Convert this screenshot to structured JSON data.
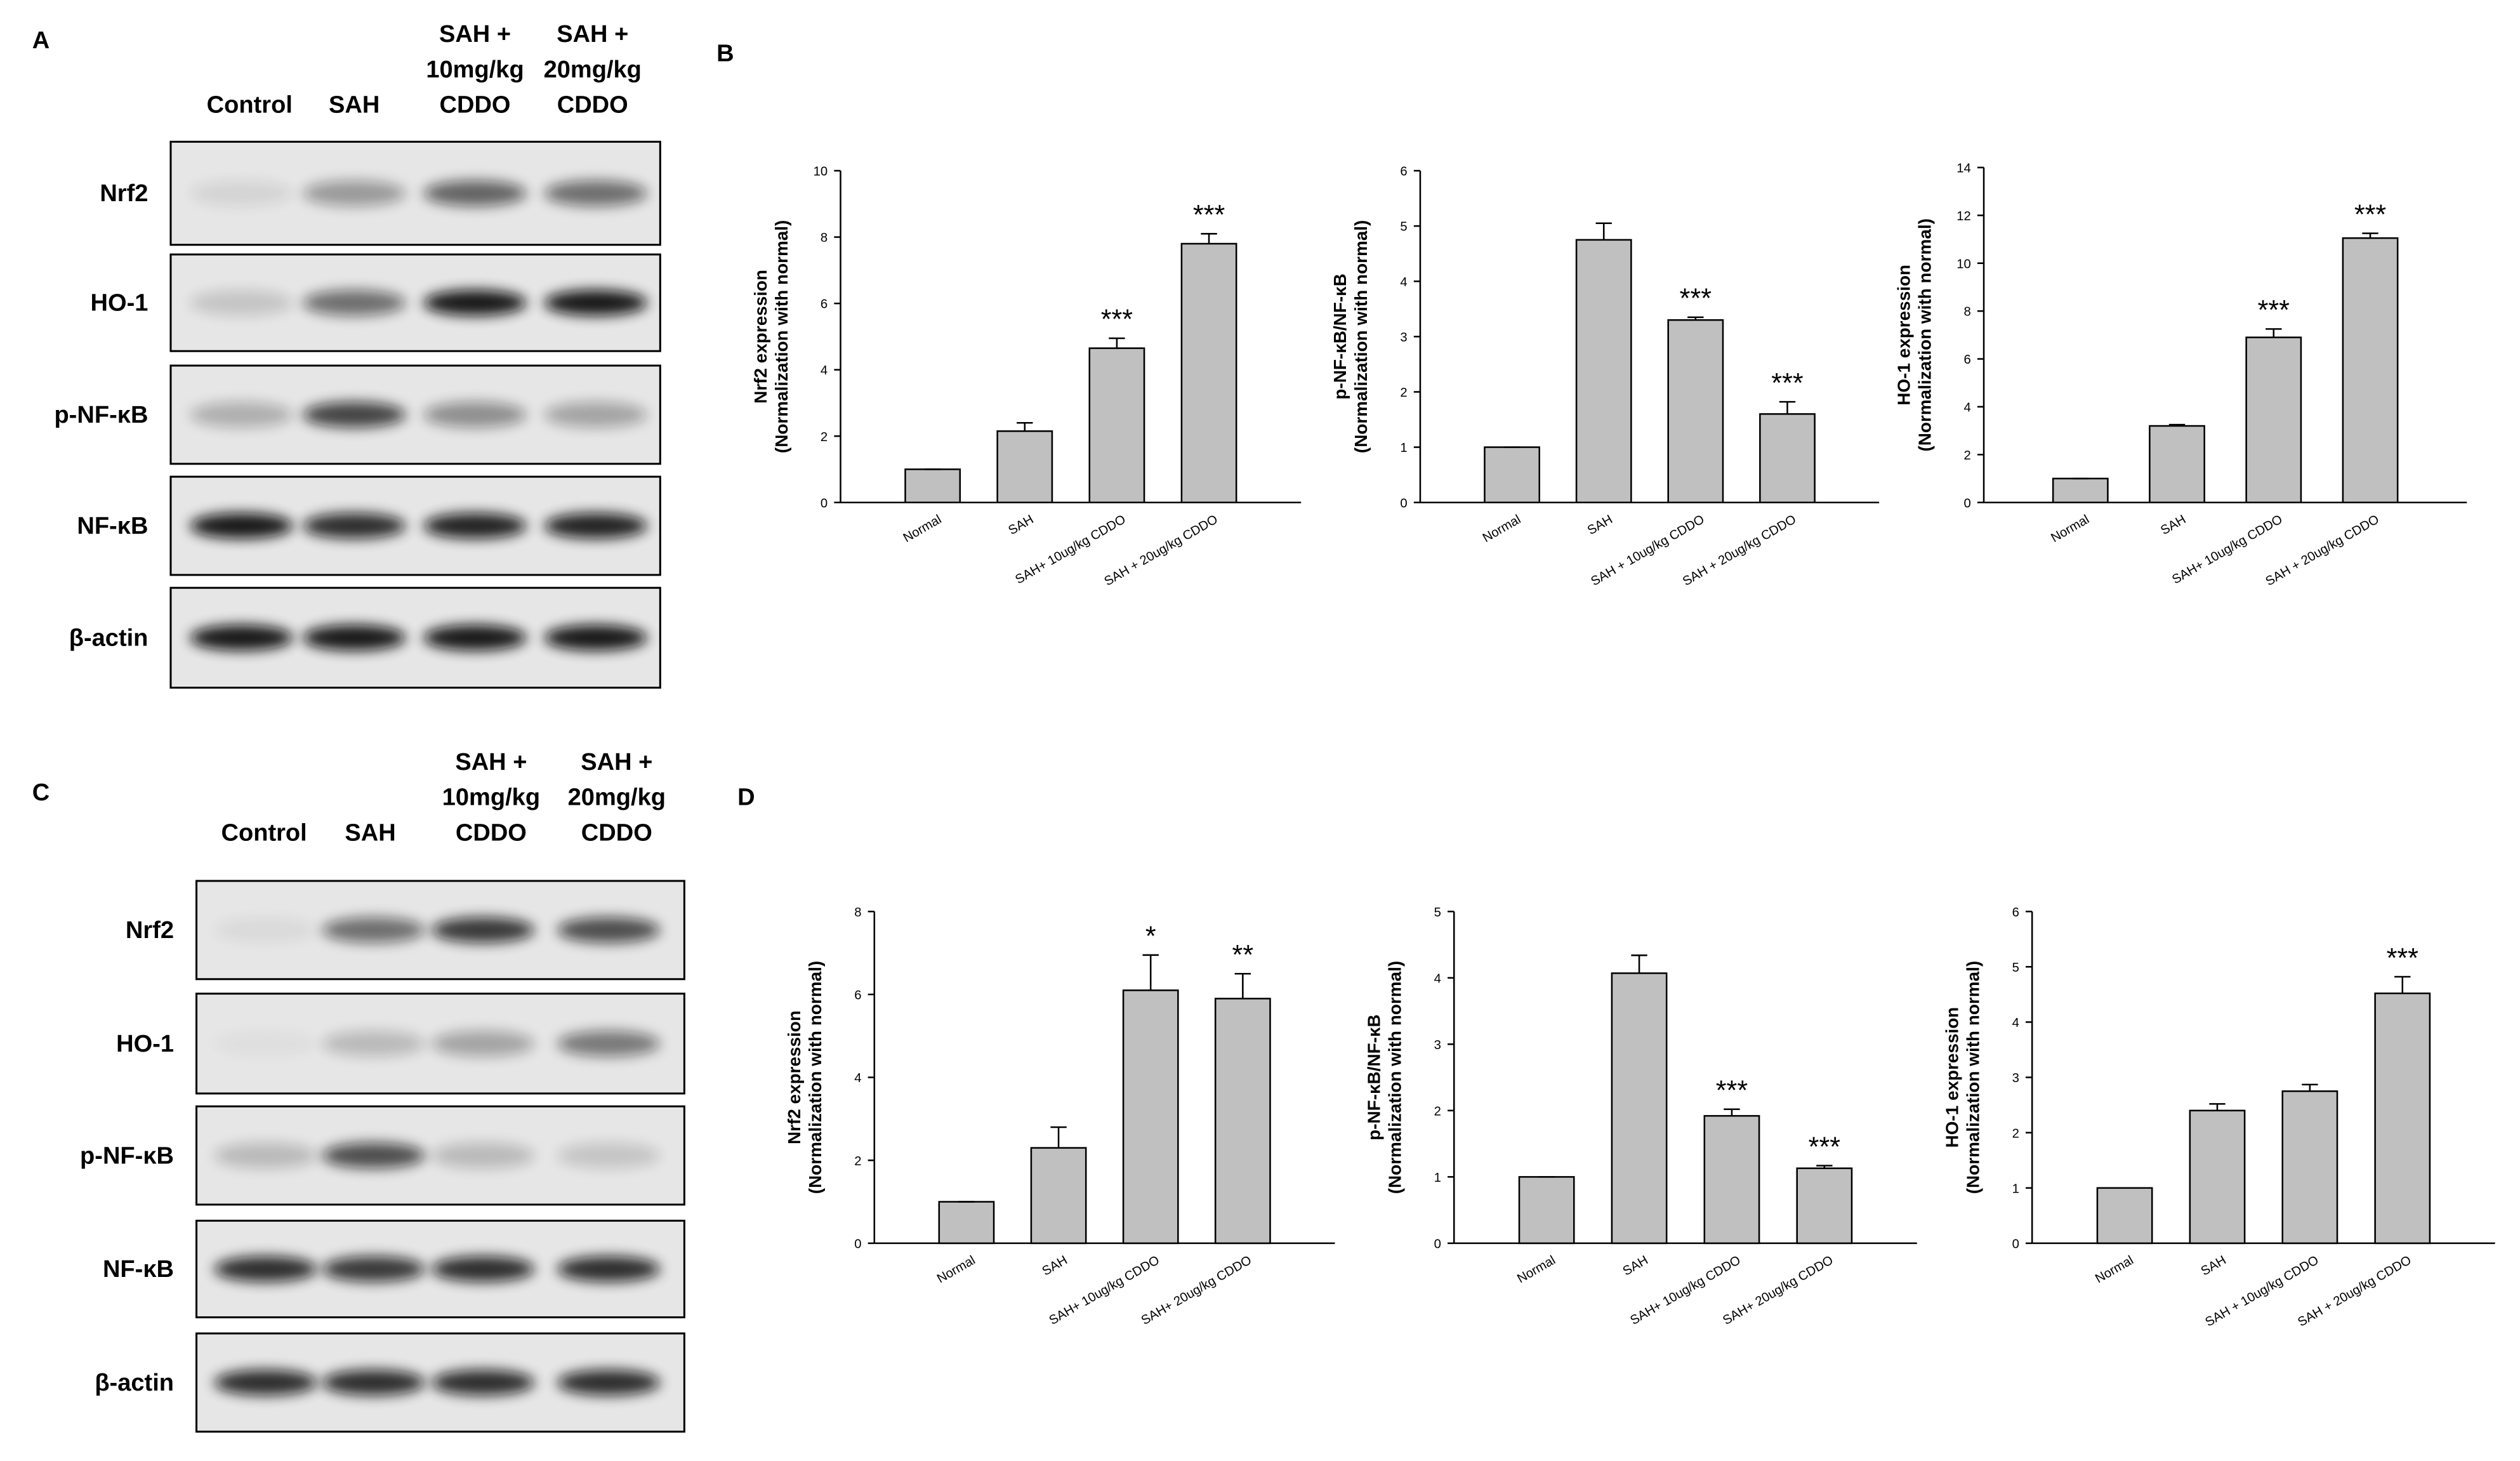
{
  "blots": [
    {
      "letter": "A",
      "lanes": [
        [
          "Control"
        ],
        [
          "SAH"
        ],
        [
          "SAH +",
          "10mg/kg",
          "CDDO"
        ],
        [
          "SAH +",
          "20mg/kg",
          "CDDO"
        ]
      ],
      "rows": [
        "Nrf2",
        "HO-1",
        "p-NF-κB",
        "NF-κB",
        "β-actin"
      ]
    },
    {
      "letter": "C",
      "lanes": [
        [
          "Control"
        ],
        [
          "SAH"
        ],
        [
          "SAH +",
          "10mg/kg",
          "CDDO"
        ],
        [
          "SAH +",
          "20mg/kg",
          "CDDO"
        ]
      ],
      "rows": [
        "Nrf2",
        "HO-1",
        "p-NF-κB",
        "NF-κB",
        "β-actin"
      ]
    }
  ],
  "chart_panels": [
    {
      "letter": "B"
    },
    {
      "letter": "D"
    }
  ],
  "chart_data": [
    {
      "type": "bar",
      "ylabel": [
        "Nrf2 expression",
        "(Normalization with normal)"
      ],
      "categories": [
        "Normal",
        "SAH",
        "SAH+ 10ug/kg CDDO",
        "SAH + 20ug/kg CDDO"
      ],
      "values": [
        1,
        2.15,
        4.65,
        7.8
      ],
      "errors": [
        0,
        0.25,
        0.3,
        0.3
      ],
      "color": "#c0c0c0",
      "ylim": [
        0,
        10
      ],
      "yticks": [
        0,
        2,
        4,
        6,
        8,
        10
      ],
      "annotations": [
        {
          "index": 2,
          "text": "***"
        },
        {
          "index": 3,
          "text": "***"
        }
      ]
    },
    {
      "type": "bar",
      "ylabel": [
        "p-NF-κB/NF-κB",
        "(Normalization with normal)"
      ],
      "categories": [
        "Normal",
        "SAH",
        "SAH + 10ug/kg CDDO",
        "SAH + 20ug/kg CDDO"
      ],
      "values": [
        1,
        4.75,
        3.3,
        1.6
      ],
      "errors": [
        0,
        0.3,
        0.05,
        0.22
      ],
      "color": "#c0c0c0",
      "ylim": [
        0,
        6
      ],
      "yticks": [
        0,
        1,
        2,
        3,
        4,
        5,
        6
      ],
      "annotations": [
        {
          "index": 2,
          "text": "***"
        },
        {
          "index": 3,
          "text": "***"
        }
      ]
    },
    {
      "type": "bar",
      "ylabel": [
        "HO-1 expression",
        "(Normalization with normal)"
      ],
      "categories": [
        "Normal",
        "SAH",
        "SAH+ 10ug/kg CDDO",
        "SAH + 20ug/kg CDDO"
      ],
      "values": [
        1,
        3.2,
        6.9,
        11.05
      ],
      "errors": [
        0,
        0.05,
        0.35,
        0.2
      ],
      "color": "#c0c0c0",
      "ylim": [
        0,
        14
      ],
      "yticks": [
        0,
        2,
        4,
        6,
        8,
        10,
        12,
        14
      ],
      "annotations": [
        {
          "index": 2,
          "text": "***"
        },
        {
          "index": 3,
          "text": "***"
        }
      ]
    },
    {
      "type": "bar",
      "ylabel": [
        "Nrf2 expression",
        "(Normalization with normal)"
      ],
      "categories": [
        "Normal",
        "SAH",
        "SAH+ 10ug/kg CDDO",
        "SAH+ 20ug/kg CDDO"
      ],
      "values": [
        1,
        2.3,
        6.1,
        5.9
      ],
      "errors": [
        0,
        0.5,
        0.85,
        0.6
      ],
      "color": "#c0c0c0",
      "ylim": [
        0,
        8
      ],
      "yticks": [
        0,
        2,
        4,
        6,
        8
      ],
      "annotations": [
        {
          "index": 2,
          "text": "*"
        },
        {
          "index": 3,
          "text": "**"
        }
      ]
    },
    {
      "type": "bar",
      "ylabel": [
        "p-NF-κB/NF-κB",
        "(Normalization with normal)"
      ],
      "categories": [
        "Normal",
        "SAH",
        "SAH+ 10ug/kg CDDO",
        "SAH+ 20ug/kg CDDO"
      ],
      "values": [
        1,
        4.07,
        1.92,
        1.13
      ],
      "errors": [
        0,
        0.27,
        0.1,
        0.04
      ],
      "color": "#c0c0c0",
      "ylim": [
        0,
        5
      ],
      "yticks": [
        0,
        1,
        2,
        3,
        4,
        5
      ],
      "annotations": [
        {
          "index": 2,
          "text": "***"
        },
        {
          "index": 3,
          "text": "***"
        }
      ]
    },
    {
      "type": "bar",
      "ylabel": [
        "HO-1 expression",
        "(Normalization with normal)"
      ],
      "categories": [
        "Normal",
        "SAH",
        "SAH + 10ug/kg CDDO",
        "SAH + 20ug/kg CDDO"
      ],
      "values": [
        1,
        2.4,
        2.75,
        4.52
      ],
      "errors": [
        0,
        0.12,
        0.12,
        0.3
      ],
      "color": "#c0c0c0",
      "ylim": [
        0,
        6
      ],
      "yticks": [
        0,
        1,
        2,
        3,
        4,
        5,
        6
      ],
      "annotations": [
        {
          "index": 3,
          "text": "***"
        }
      ]
    }
  ]
}
